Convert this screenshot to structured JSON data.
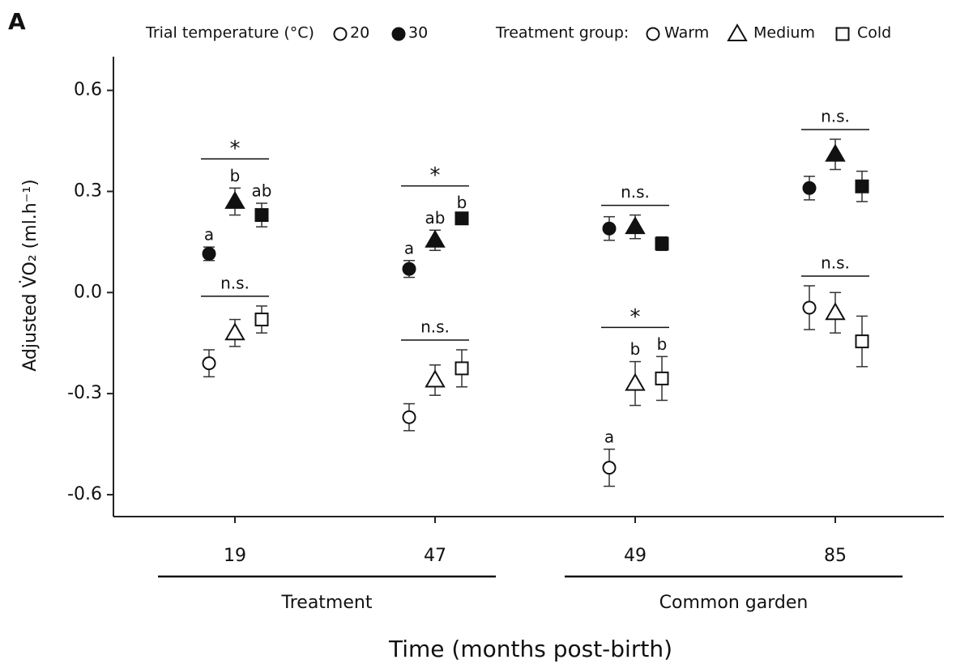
{
  "chart_data": {
    "type": "scatter",
    "panel": "A",
    "ylabel": "Adjusted V̇O₂ (ml.h⁻¹)",
    "xlabel": "Time (months post-birth)",
    "categories": [
      "19",
      "47",
      "49",
      "85"
    ],
    "periods": [
      "Treatment",
      "Common garden"
    ],
    "ylim": [
      -0.665,
      0.7
    ],
    "yticks": [
      {
        "value": -0.6,
        "label": "-0.6"
      },
      -0.3,
      {
        "value": 0,
        "label": "0.0"
      },
      0.3,
      0.6
    ],
    "legend": {
      "temperature_title": "Trial temperature (°C)",
      "group_title": "Treatment group:"
    },
    "temperatures": [
      {
        "name": "20",
        "filled": false,
        "significance": [
          "n.s.",
          "n.s.",
          "*",
          "n.s."
        ],
        "series": [
          {
            "name": "Warm",
            "marker": "circle",
            "values": [
              -0.21,
              -0.37,
              -0.52,
              -0.045
            ],
            "errors": [
              0.04,
              0.04,
              0.055,
              0.065
            ],
            "letters": [
              null,
              null,
              "a",
              null
            ]
          },
          {
            "name": "Medium",
            "marker": "triangle",
            "values": [
              -0.12,
              -0.26,
              -0.27,
              -0.06
            ],
            "errors": [
              0.04,
              0.045,
              0.065,
              0.06
            ],
            "letters": [
              null,
              null,
              "b",
              null
            ]
          },
          {
            "name": "Cold",
            "marker": "square",
            "values": [
              -0.08,
              -0.225,
              -0.255,
              -0.145
            ],
            "errors": [
              0.04,
              0.055,
              0.065,
              0.075
            ],
            "letters": [
              null,
              null,
              "b",
              null
            ]
          }
        ]
      },
      {
        "name": "30",
        "filled": true,
        "significance": [
          "*",
          "*",
          "n.s.",
          "n.s."
        ],
        "series": [
          {
            "name": "Warm",
            "marker": "circle",
            "values": [
              0.115,
              0.07,
              0.19,
              0.31
            ],
            "errors": [
              0.02,
              0.025,
              0.035,
              0.035
            ],
            "letters": [
              "a",
              "a",
              null,
              null
            ]
          },
          {
            "name": "Medium",
            "marker": "triangle",
            "values": [
              0.27,
              0.155,
              0.195,
              0.41
            ],
            "errors": [
              0.04,
              0.03,
              0.035,
              0.045
            ],
            "letters": [
              "b",
              "ab",
              null,
              null
            ]
          },
          {
            "name": "Cold",
            "marker": "square",
            "values": [
              0.23,
              0.22,
              0.145,
              0.315
            ],
            "errors": [
              0.035,
              0.01,
              0.02,
              0.045
            ],
            "letters": [
              "ab",
              "b",
              null,
              null
            ]
          }
        ]
      }
    ]
  }
}
